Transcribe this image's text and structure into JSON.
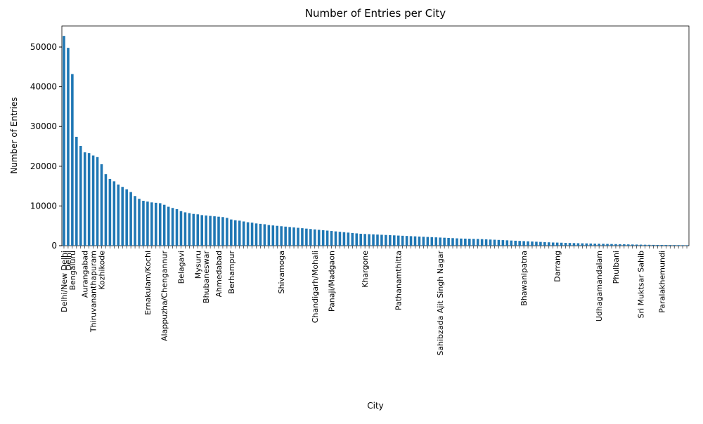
{
  "chart_data": {
    "type": "bar",
    "title": "Number of Entries per City",
    "x_label": "City",
    "y_label": "Number of Entries",
    "color": "#1f77b4",
    "categories": [
      "Delhi/New Delhi",
      "Delhi",
      "Bengaluru",
      null,
      null,
      "Aurangabad",
      null,
      "Thiruvananthapuram",
      null,
      "Kozhikode",
      null,
      null,
      null,
      null,
      null,
      null,
      null,
      null,
      null,
      null,
      "Ernakulam/Kochi",
      null,
      null,
      null,
      "Alappuzha/Chengannur",
      null,
      null,
      null,
      "Belagavi",
      null,
      null,
      null,
      "Mysuru",
      null,
      "Bhubaneswar",
      null,
      null,
      "Ahmedabad",
      null,
      null,
      "Berhampur",
      null,
      null,
      null,
      null,
      null,
      null,
      null,
      null,
      null,
      null,
      null,
      "Shivamoga",
      null,
      null,
      null,
      null,
      null,
      null,
      null,
      "Chandigarh/Mohali",
      null,
      null,
      null,
      "Panaji/Madgaon",
      null,
      null,
      null,
      null,
      null,
      null,
      null,
      "Khargone",
      null,
      null,
      null,
      null,
      null,
      null,
      null,
      "Pathanamthitta",
      null,
      null,
      null,
      null,
      null,
      null,
      null,
      null,
      null,
      "Sahibzada Ajit Singh Nagar",
      null,
      null,
      null,
      null,
      null,
      null,
      null,
      null,
      null,
      null,
      null,
      null,
      null,
      null,
      null,
      null,
      null,
      null,
      null,
      "Bhawanipatna",
      null,
      null,
      null,
      null,
      null,
      null,
      null,
      "Darrang",
      null,
      null,
      null,
      null,
      null,
      null,
      null,
      null,
      null,
      "Udhagamandalam",
      null,
      null,
      null,
      "Phulbani",
      null,
      null,
      null,
      null,
      null,
      "Sri Muktsar Sahib",
      null,
      null,
      null,
      null,
      "Paralakhemundi",
      null,
      null,
      null,
      null,
      null,
      null
    ],
    "values": [
      52800,
      49800,
      43200,
      27400,
      25100,
      23500,
      23300,
      22700,
      22300,
      20500,
      18000,
      16800,
      16200,
      15400,
      14800,
      14200,
      13500,
      12500,
      11800,
      11300,
      11100,
      10900,
      10800,
      10700,
      10300,
      9800,
      9500,
      9200,
      8700,
      8400,
      8200,
      8000,
      7900,
      7700,
      7600,
      7500,
      7400,
      7300,
      7200,
      7000,
      6600,
      6400,
      6300,
      6100,
      5900,
      5800,
      5600,
      5500,
      5400,
      5200,
      5100,
      5000,
      4900,
      4800,
      4700,
      4600,
      4500,
      4400,
      4300,
      4200,
      4100,
      4000,
      3900,
      3800,
      3700,
      3600,
      3500,
      3400,
      3300,
      3200,
      3100,
      3000,
      2950,
      2900,
      2850,
      2800,
      2750,
      2700,
      2650,
      2600,
      2550,
      2500,
      2450,
      2400,
      2350,
      2300,
      2250,
      2200,
      2150,
      2100,
      2050,
      2000,
      1950,
      1900,
      1850,
      1800,
      1780,
      1750,
      1720,
      1700,
      1650,
      1600,
      1550,
      1500,
      1450,
      1400,
      1350,
      1300,
      1250,
      1200,
      1150,
      1100,
      1050,
      1000,
      950,
      900,
      850,
      800,
      780,
      750,
      700,
      680,
      650,
      620,
      600,
      580,
      550,
      520,
      500,
      480,
      450,
      420,
      400,
      380,
      350,
      320,
      300,
      280,
      260,
      240,
      220,
      200,
      190,
      180,
      170,
      160,
      150,
      140,
      130,
      120
    ],
    "ylim": [
      0,
      55300
    ],
    "yticks": [
      0,
      10000,
      20000,
      30000,
      40000,
      50000
    ]
  }
}
